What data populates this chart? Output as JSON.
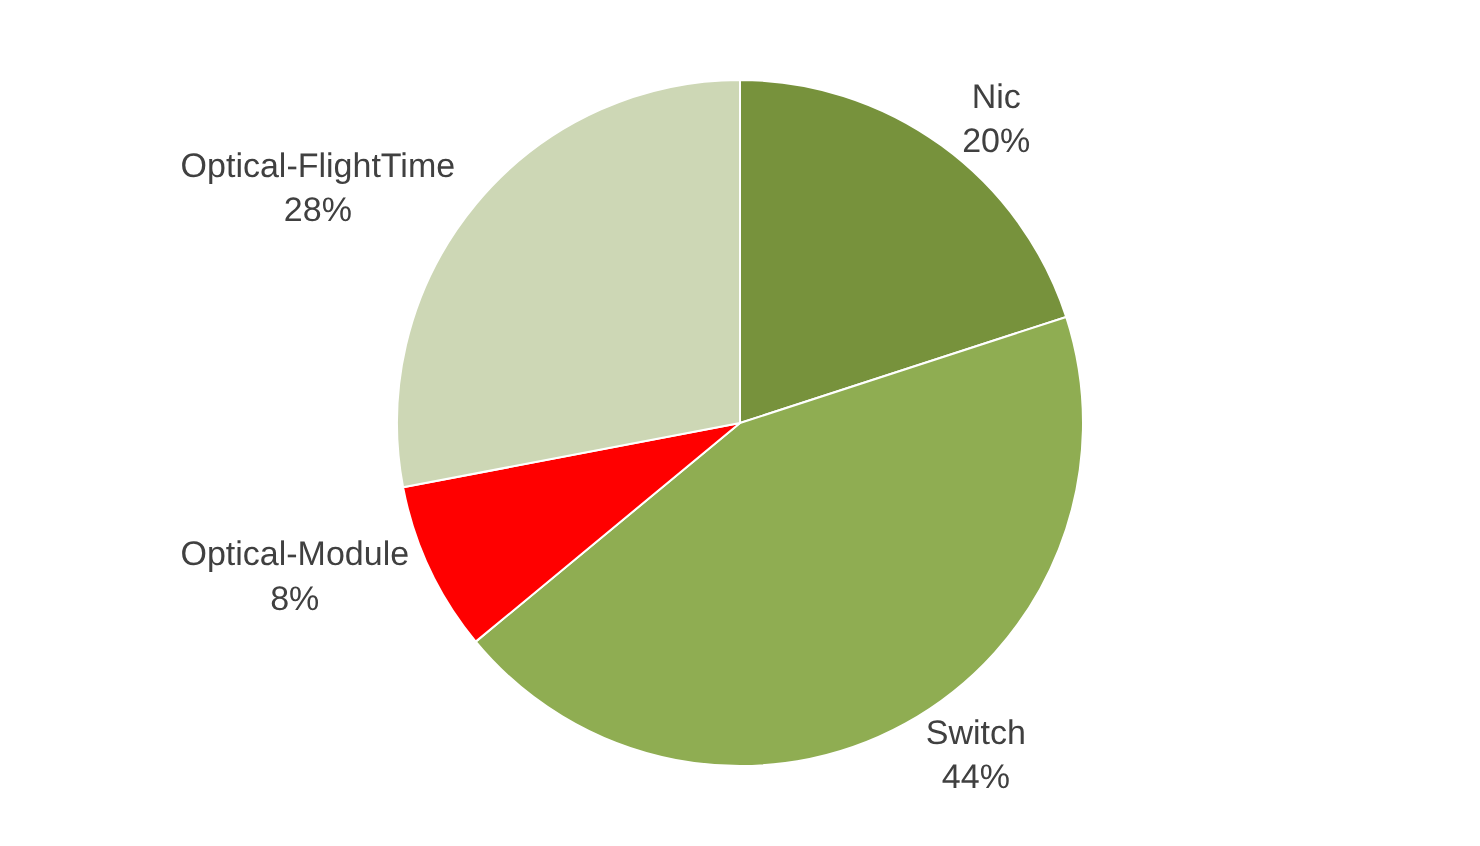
{
  "chart_data": {
    "type": "pie",
    "categories": [
      "Nic",
      "Switch",
      "Optical-Module",
      "Optical-FlightTime"
    ],
    "values": [
      20,
      44,
      8,
      28
    ],
    "value_labels": [
      "20%",
      "44%",
      "8%",
      "28%"
    ],
    "colors": [
      "#77923c",
      "#8fad52",
      "#ff0000",
      "#cdd7b5"
    ],
    "legend": false
  }
}
